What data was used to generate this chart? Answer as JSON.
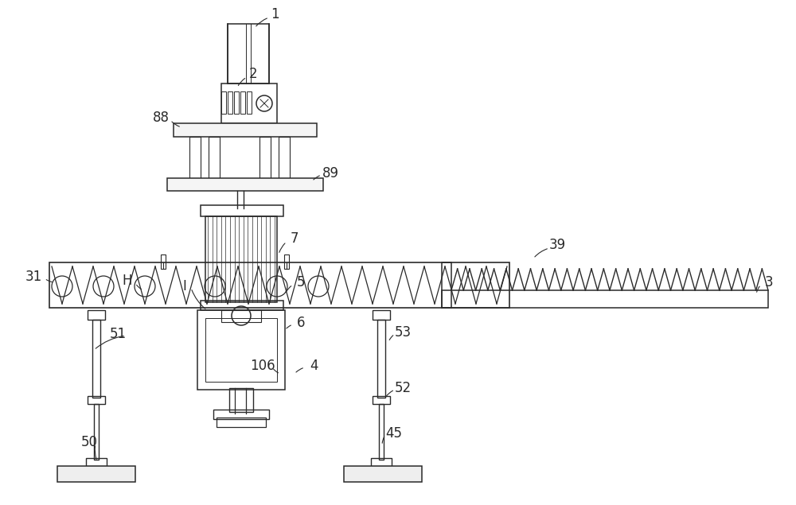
{
  "bg_color": "#ffffff",
  "line_color": "#2a2a2a",
  "lw": 1.1,
  "fig_width": 10.0,
  "fig_height": 6.35
}
